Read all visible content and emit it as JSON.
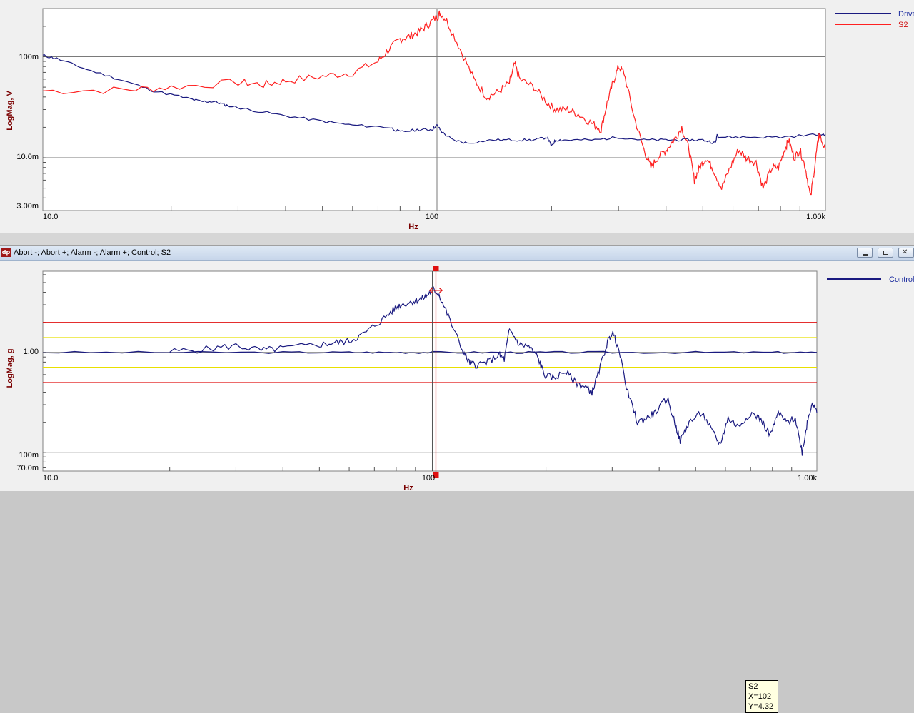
{
  "top_panel": {
    "ylabel": "LogMag, V",
    "xlabel": "Hz",
    "y_ticks": [
      "100m",
      "10.0m",
      "3.00m"
    ],
    "x_ticks": [
      "10.0",
      "100",
      "1.00k"
    ],
    "legend": [
      {
        "label": "Drive",
        "color": "#1a1a80"
      },
      {
        "label": "S2",
        "color": "#ff2020"
      }
    ]
  },
  "bottom_panel": {
    "window_title": "Abort -; Abort +; Alarm -; Alarm +; Control; S2",
    "ylabel": "LogMag, g",
    "xlabel": "Hz",
    "y_ticks": [
      "1.00",
      "100m",
      "70.0m"
    ],
    "x_ticks": [
      "10.0",
      "100",
      "1.00k"
    ],
    "legend": [
      {
        "label": "Control",
        "color": "#1a1a80"
      }
    ],
    "cursor_tooltip": {
      "series": "S2",
      "x": "X=102",
      "y": "Y=4.32"
    }
  },
  "chart_data": [
    {
      "type": "line",
      "x_scale": "log",
      "y_scale": "log",
      "xlabel": "Hz",
      "ylabel": "LogMag, V",
      "xlim": [
        9.2,
        1050
      ],
      "ylim": [
        0.003,
        0.3
      ],
      "grid": true,
      "legend_position": "top-right",
      "series": [
        {
          "name": "Drive",
          "color": "#1a1a80",
          "points": [
            [
              9.2,
              0.103
            ],
            [
              10,
              0.096
            ],
            [
              12,
              0.075
            ],
            [
              15,
              0.058
            ],
            [
              18,
              0.046
            ],
            [
              22,
              0.039
            ],
            [
              24,
              0.036
            ],
            [
              26,
              0.036
            ],
            [
              28,
              0.033
            ],
            [
              32,
              0.03
            ],
            [
              40,
              0.026
            ],
            [
              50,
              0.023
            ],
            [
              60,
              0.021
            ],
            [
              75,
              0.02
            ],
            [
              80,
              0.018
            ],
            [
              90,
              0.019
            ],
            [
              97,
              0.019
            ],
            [
              100,
              0.021
            ],
            [
              103,
              0.018
            ],
            [
              110,
              0.015
            ],
            [
              120,
              0.014
            ],
            [
              140,
              0.015
            ],
            [
              160,
              0.015
            ],
            [
              180,
              0.015
            ],
            [
              195,
              0.016
            ],
            [
              200,
              0.013
            ],
            [
              205,
              0.015
            ],
            [
              220,
              0.015
            ],
            [
              260,
              0.015
            ],
            [
              300,
              0.016
            ],
            [
              350,
              0.015
            ],
            [
              400,
              0.015
            ],
            [
              450,
              0.015
            ],
            [
              500,
              0.015
            ],
            [
              540,
              0.014
            ],
            [
              545,
              0.017
            ],
            [
              550,
              0.016
            ],
            [
              650,
              0.016
            ],
            [
              800,
              0.016
            ],
            [
              1000,
              0.017
            ],
            [
              1050,
              0.017
            ]
          ]
        },
        {
          "name": "S2",
          "color": "#ff2020",
          "points": [
            [
              9.2,
              0.046
            ],
            [
              15,
              0.047
            ],
            [
              20,
              0.05
            ],
            [
              30,
              0.056
            ],
            [
              35,
              0.053
            ],
            [
              40,
              0.058
            ],
            [
              50,
              0.064
            ],
            [
              60,
              0.07
            ],
            [
              70,
              0.09
            ],
            [
              75,
              0.12
            ],
            [
              80,
              0.15
            ],
            [
              85,
              0.16
            ],
            [
              90,
              0.18
            ],
            [
              95,
              0.21
            ],
            [
              100,
              0.25
            ],
            [
              102,
              0.27
            ],
            [
              106,
              0.23
            ],
            [
              115,
              0.12
            ],
            [
              125,
              0.06
            ],
            [
              135,
              0.04
            ],
            [
              145,
              0.045
            ],
            [
              155,
              0.055
            ],
            [
              160,
              0.085
            ],
            [
              165,
              0.06
            ],
            [
              180,
              0.05
            ],
            [
              195,
              0.035
            ],
            [
              205,
              0.03
            ],
            [
              220,
              0.03
            ],
            [
              235,
              0.027
            ],
            [
              255,
              0.022
            ],
            [
              270,
              0.019
            ],
            [
              280,
              0.035
            ],
            [
              290,
              0.055
            ],
            [
              300,
              0.08
            ],
            [
              310,
              0.07
            ],
            [
              330,
              0.025
            ],
            [
              350,
              0.012
            ],
            [
              365,
              0.008
            ],
            [
              380,
              0.01
            ],
            [
              400,
              0.012
            ],
            [
              420,
              0.015
            ],
            [
              440,
              0.02
            ],
            [
              460,
              0.012
            ],
            [
              475,
              0.006
            ],
            [
              490,
              0.008
            ],
            [
              510,
              0.01
            ],
            [
              530,
              0.008
            ],
            [
              560,
              0.005
            ],
            [
              590,
              0.008
            ],
            [
              620,
              0.012
            ],
            [
              650,
              0.01
            ],
            [
              690,
              0.009
            ],
            [
              720,
              0.005
            ],
            [
              760,
              0.008
            ],
            [
              790,
              0.008
            ],
            [
              820,
              0.012
            ],
            [
              840,
              0.015
            ],
            [
              870,
              0.01
            ],
            [
              900,
              0.012
            ],
            [
              930,
              0.008
            ],
            [
              960,
              0.004
            ],
            [
              990,
              0.01
            ],
            [
              1010,
              0.017
            ],
            [
              1050,
              0.012
            ]
          ]
        }
      ]
    },
    {
      "type": "line",
      "x_scale": "log",
      "y_scale": "log",
      "xlabel": "Hz",
      "ylabel": "LogMag, g",
      "xlim": [
        9.2,
        1050
      ],
      "ylim": [
        0.065,
        6.5
      ],
      "grid": true,
      "legend_position": "top-right",
      "limit_lines": {
        "abort_minus": 0.5,
        "abort_plus": 2.0,
        "alarm_minus": 0.71,
        "alarm_plus": 1.41
      },
      "cursor": {
        "series": "S2",
        "x": 102,
        "y": 4.32
      },
      "series": [
        {
          "name": "Control",
          "color": "#1a1a80",
          "points": [
            [
              9.2,
              1.0
            ],
            [
              20,
              1.0
            ],
            [
              40,
              1.0
            ],
            [
              60,
              1.0
            ],
            [
              80,
              1.0
            ],
            [
              100,
              1.0
            ],
            [
              150,
              1.0
            ],
            [
              200,
              1.0
            ],
            [
              300,
              1.0
            ],
            [
              500,
              1.0
            ],
            [
              800,
              1.0
            ],
            [
              1050,
              1.0
            ]
          ]
        },
        {
          "color": "#1a1a80",
          "points": [
            [
              20,
              1.02
            ],
            [
              25,
              1.08
            ],
            [
              30,
              1.17
            ],
            [
              35,
              1.05
            ],
            [
              40,
              1.1
            ],
            [
              50,
              1.2
            ],
            [
              55,
              1.25
            ],
            [
              60,
              1.3
            ],
            [
              65,
              1.5
            ],
            [
              72,
              2.0
            ],
            [
              78,
              2.6
            ],
            [
              82,
              3.0
            ],
            [
              88,
              3.2
            ],
            [
              92,
              3.4
            ],
            [
              96,
              3.6
            ],
            [
              100,
              4.32
            ],
            [
              104,
              3.8
            ],
            [
              110,
              2.3
            ],
            [
              120,
              1.05
            ],
            [
              125,
              0.8
            ],
            [
              130,
              0.75
            ],
            [
              140,
              0.8
            ],
            [
              150,
              0.95
            ],
            [
              155,
              0.85
            ],
            [
              160,
              1.7
            ],
            [
              170,
              1.2
            ],
            [
              180,
              1.15
            ],
            [
              190,
              0.9
            ],
            [
              198,
              0.6
            ],
            [
              210,
              0.55
            ],
            [
              225,
              0.65
            ],
            [
              240,
              0.5
            ],
            [
              255,
              0.45
            ],
            [
              265,
              0.4
            ],
            [
              275,
              0.6
            ],
            [
              290,
              1.2
            ],
            [
              300,
              1.6
            ],
            [
              310,
              1.2
            ],
            [
              330,
              0.4
            ],
            [
              350,
              0.2
            ],
            [
              370,
              0.22
            ],
            [
              390,
              0.25
            ],
            [
              420,
              0.35
            ],
            [
              440,
              0.2
            ],
            [
              455,
              0.13
            ],
            [
              480,
              0.2
            ],
            [
              520,
              0.25
            ],
            [
              560,
              0.15
            ],
            [
              580,
              0.12
            ],
            [
              610,
              0.22
            ],
            [
              650,
              0.18
            ],
            [
              700,
              0.25
            ],
            [
              740,
              0.22
            ],
            [
              790,
              0.15
            ],
            [
              830,
              0.25
            ],
            [
              870,
              0.2
            ],
            [
              920,
              0.22
            ],
            [
              960,
              0.1
            ],
            [
              990,
              0.2
            ],
            [
              1020,
              0.32
            ],
            [
              1050,
              0.25
            ]
          ]
        }
      ]
    }
  ]
}
